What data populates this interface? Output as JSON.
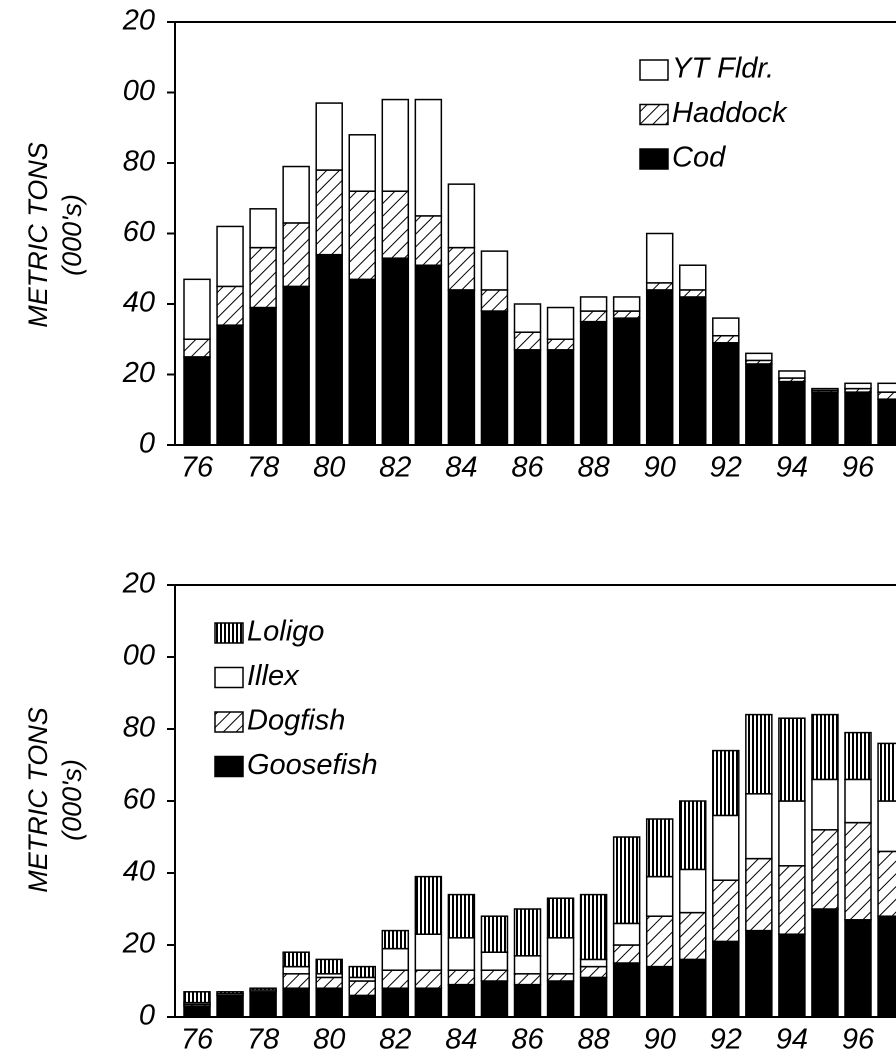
{
  "chart_data": [
    {
      "type": "bar",
      "stacked": true,
      "legend": "upper right",
      "ylabel": [
        "METRIC TONS",
        "(000's)"
      ],
      "categories": [
        "76",
        null,
        "78",
        null,
        "80",
        null,
        "82",
        null,
        "84",
        null,
        "86",
        null,
        "88",
        null,
        "90",
        null,
        "92",
        null,
        "94",
        null,
        "96",
        null
      ],
      "ylim": [
        0,
        120
      ],
      "yticks": [
        0,
        20,
        40,
        60,
        80,
        {
          "value": 100,
          "label": "00"
        },
        {
          "value": 120,
          "label": "20"
        }
      ],
      "series": [
        {
          "name": "Cod",
          "color": "#000000",
          "pattern": "solid",
          "values": [
            25,
            34,
            39,
            45,
            54,
            47,
            53,
            51,
            44,
            38,
            27,
            27,
            35,
            36,
            44,
            42,
            29,
            23,
            18,
            15,
            15,
            13
          ]
        },
        {
          "name": "Haddock",
          "color": "#ffffff",
          "pattern": "diagonal",
          "values": [
            5,
            11,
            17,
            18,
            24,
            25,
            19,
            14,
            12,
            6,
            5,
            3,
            3,
            2,
            2,
            2,
            2,
            1,
            1,
            0.5,
            1,
            2
          ]
        },
        {
          "name": "YT Fldr.",
          "color": "#ffffff",
          "pattern": "solid",
          "values": [
            17,
            17,
            11,
            16,
            19,
            16,
            26,
            33,
            18,
            11,
            8,
            9,
            4,
            4,
            14,
            7,
            5,
            2,
            2,
            0.5,
            1.5,
            2.5
          ]
        }
      ]
    },
    {
      "type": "bar",
      "stacked": true,
      "legend": "upper left",
      "ylabel": [
        "METRIC TONS",
        "(000's)"
      ],
      "categories": [
        "76",
        null,
        "78",
        null,
        "80",
        null,
        "82",
        null,
        "84",
        null,
        "86",
        null,
        "88",
        null,
        "90",
        null,
        "92",
        null,
        "94",
        null,
        "96",
        null
      ],
      "ylim": [
        0,
        120
      ],
      "yticks": [
        0,
        20,
        40,
        60,
        80,
        {
          "value": 100,
          "label": "00"
        },
        {
          "value": 120,
          "label": "20"
        }
      ],
      "series": [
        {
          "name": "Goosefish",
          "color": "#000000",
          "pattern": "solid",
          "values": [
            3,
            6,
            7,
            8,
            8,
            6,
            8,
            8,
            9,
            10,
            9,
            10,
            11,
            15,
            14,
            16,
            21,
            24,
            23,
            30,
            27,
            28
          ]
        },
        {
          "name": "Dogfish",
          "color": "#ffffff",
          "pattern": "diagonal",
          "values": [
            0.5,
            0,
            0,
            4,
            3,
            4,
            5,
            5,
            4,
            3,
            3,
            2,
            3,
            5,
            14,
            13,
            17,
            20,
            19,
            22,
            27,
            18
          ]
        },
        {
          "name": "Illex",
          "color": "#ffffff",
          "pattern": "solid",
          "values": [
            0.5,
            0.5,
            0.5,
            2,
            1,
            1,
            6,
            10,
            9,
            5,
            5,
            10,
            2,
            6,
            11,
            12,
            18,
            18,
            18,
            14,
            12,
            14
          ]
        },
        {
          "name": "Loligo",
          "color": "#ffffff",
          "pattern": "vertical",
          "values": [
            3,
            0.5,
            0.5,
            4,
            4,
            3,
            5,
            16,
            12,
            10,
            13,
            11,
            18,
            24,
            16,
            19,
            18,
            22,
            23,
            18,
            13,
            16
          ]
        }
      ]
    }
  ]
}
